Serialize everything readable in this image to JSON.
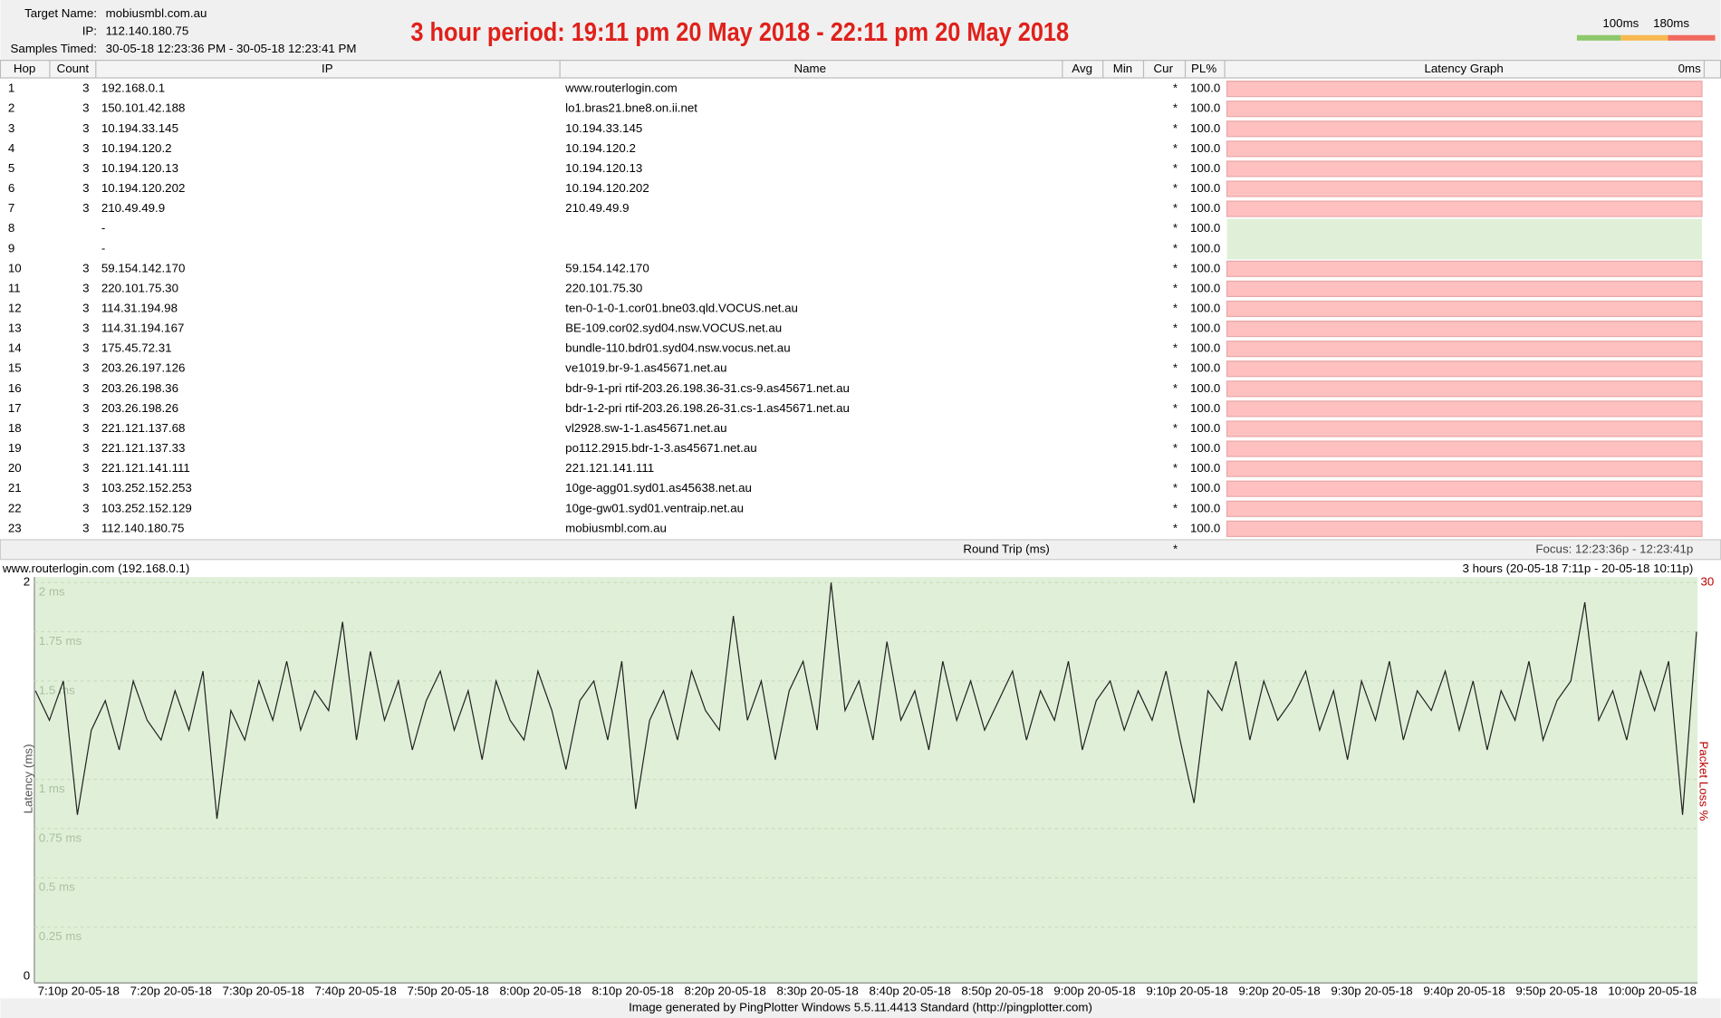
{
  "header": {
    "target_name_label": "Target Name:",
    "target_name": "mobiusmbl.com.au",
    "ip_label": "IP:",
    "ip": "112.140.180.75",
    "samples_label": "Samples Timed:",
    "samples": "30-05-18 12:23:36 PM - 30-05-18 12:23:41 PM",
    "banner": "3 hour period:  19:11 pm 20 May 2018 - 22:11 pm 20 May 2018",
    "legend": [
      "100ms",
      "180ms"
    ]
  },
  "table": {
    "columns": [
      "Hop",
      "Count",
      "IP",
      "Name",
      "Avg",
      "Min",
      "Cur",
      "PL%",
      "Latency Graph"
    ],
    "graph_scale": "0ms",
    "rows": [
      {
        "hop": 1,
        "count": 3,
        "ip": "192.168.0.1",
        "name": "www.routerlogin.com",
        "cur": "*",
        "pl": "100.0"
      },
      {
        "hop": 2,
        "count": 3,
        "ip": "150.101.42.188",
        "name": "lo1.bras21.bne8.on.ii.net",
        "cur": "*",
        "pl": "100.0"
      },
      {
        "hop": 3,
        "count": 3,
        "ip": "10.194.33.145",
        "name": "10.194.33.145",
        "cur": "*",
        "pl": "100.0"
      },
      {
        "hop": 4,
        "count": 3,
        "ip": "10.194.120.2",
        "name": "10.194.120.2",
        "cur": "*",
        "pl": "100.0"
      },
      {
        "hop": 5,
        "count": 3,
        "ip": "10.194.120.13",
        "name": "10.194.120.13",
        "cur": "*",
        "pl": "100.0"
      },
      {
        "hop": 6,
        "count": 3,
        "ip": "10.194.120.202",
        "name": "10.194.120.202",
        "cur": "*",
        "pl": "100.0"
      },
      {
        "hop": 7,
        "count": 3,
        "ip": "210.49.49.9",
        "name": "210.49.49.9",
        "cur": "*",
        "pl": "100.0"
      },
      {
        "hop": 8,
        "count": null,
        "ip": "-",
        "name": null,
        "cur": "*",
        "pl": "100.0"
      },
      {
        "hop": 9,
        "count": null,
        "ip": "-",
        "name": null,
        "cur": "*",
        "pl": "100.0"
      },
      {
        "hop": 10,
        "count": 3,
        "ip": "59.154.142.170",
        "name": "59.154.142.170",
        "cur": "*",
        "pl": "100.0"
      },
      {
        "hop": 11,
        "count": 3,
        "ip": "220.101.75.30",
        "name": "220.101.75.30",
        "cur": "*",
        "pl": "100.0"
      },
      {
        "hop": 12,
        "count": 3,
        "ip": "114.31.194.98",
        "name": "ten-0-1-0-1.cor01.bne03.qld.VOCUS.net.au",
        "cur": "*",
        "pl": "100.0"
      },
      {
        "hop": 13,
        "count": 3,
        "ip": "114.31.194.167",
        "name": "BE-109.cor02.syd04.nsw.VOCUS.net.au",
        "cur": "*",
        "pl": "100.0"
      },
      {
        "hop": 14,
        "count": 3,
        "ip": "175.45.72.31",
        "name": "bundle-110.bdr01.syd04.nsw.vocus.net.au",
        "cur": "*",
        "pl": "100.0"
      },
      {
        "hop": 15,
        "count": 3,
        "ip": "203.26.197.126",
        "name": "ve1019.br-9-1.as45671.net.au",
        "cur": "*",
        "pl": "100.0"
      },
      {
        "hop": 16,
        "count": 3,
        "ip": "203.26.198.36",
        "name": "bdr-9-1-pri rtif-203.26.198.36-31.cs-9.as45671.net.au",
        "cur": "*",
        "pl": "100.0"
      },
      {
        "hop": 17,
        "count": 3,
        "ip": "203.26.198.26",
        "name": "bdr-1-2-pri rtif-203.26.198.26-31.cs-1.as45671.net.au",
        "cur": "*",
        "pl": "100.0"
      },
      {
        "hop": 18,
        "count": 3,
        "ip": "221.121.137.68",
        "name": "vl2928.sw-1-1.as45671.net.au",
        "cur": "*",
        "pl": "100.0"
      },
      {
        "hop": 19,
        "count": 3,
        "ip": "221.121.137.33",
        "name": "po112.2915.bdr-1-3.as45671.net.au",
        "cur": "*",
        "pl": "100.0"
      },
      {
        "hop": 20,
        "count": 3,
        "ip": "221.121.141.111",
        "name": "221.121.141.111",
        "cur": "*",
        "pl": "100.0"
      },
      {
        "hop": 21,
        "count": 3,
        "ip": "103.252.152.253",
        "name": "10ge-agg01.syd01.as45638.net.au",
        "cur": "*",
        "pl": "100.0"
      },
      {
        "hop": 22,
        "count": 3,
        "ip": "103.252.152.129",
        "name": "10ge-gw01.syd01.ventraip.net.au",
        "cur": "*",
        "pl": "100.0"
      },
      {
        "hop": 23,
        "count": 3,
        "ip": "112.140.180.75",
        "name": "mobiusmbl.com.au",
        "cur": "*",
        "pl": "100.0"
      }
    ],
    "footer": {
      "label": "Round Trip (ms)",
      "cur": "*",
      "focus": "Focus: 12:23:36p - 12:23:41p"
    }
  },
  "graph": {
    "title": "www.routerlogin.com (192.168.0.1)",
    "range": "3 hours (20-05-18 7:11p - 20-05-18 10:11p)",
    "ylabel": "Latency (ms)",
    "y2label": "Packet Loss %",
    "y2top": "30",
    "ylim": [
      0,
      2
    ],
    "yticks": [
      {
        "value": 2,
        "label": "2 ms"
      },
      {
        "value": 1.75,
        "label": "1.75 ms"
      },
      {
        "value": 1.5,
        "label": "1.5 ms"
      },
      {
        "value": 1,
        "label": "1 ms"
      },
      {
        "value": 0.75,
        "label": "0.75 ms"
      },
      {
        "value": 0.5,
        "label": "0.5 ms"
      },
      {
        "value": 0.25,
        "label": "0.25 ms"
      }
    ],
    "xlabels": [
      "7:10p 20-05-18",
      "7:20p 20-05-18",
      "7:30p 20-05-18",
      "7:40p 20-05-18",
      "7:50p 20-05-18",
      "8:00p 20-05-18",
      "8:10p 20-05-18",
      "8:20p 20-05-18",
      "8:30p 20-05-18",
      "8:40p 20-05-18",
      "8:50p 20-05-18",
      "9:00p 20-05-18",
      "9:10p 20-05-18",
      "9:20p 20-05-18",
      "9:30p 20-05-18",
      "9:40p 20-05-18",
      "9:50p 20-05-18",
      "10:00p 20-05-18"
    ],
    "color": "#222222",
    "values": [
      1.45,
      1.3,
      1.5,
      0.82,
      1.25,
      1.4,
      1.15,
      1.5,
      1.3,
      1.2,
      1.45,
      1.25,
      1.55,
      0.8,
      1.35,
      1.2,
      1.5,
      1.3,
      1.6,
      1.25,
      1.45,
      1.35,
      1.8,
      1.2,
      1.65,
      1.3,
      1.5,
      1.15,
      1.4,
      1.55,
      1.25,
      1.45,
      1.1,
      1.5,
      1.3,
      1.2,
      1.55,
      1.35,
      1.05,
      1.4,
      1.5,
      1.2,
      1.6,
      0.85,
      1.3,
      1.45,
      1.2,
      1.55,
      1.35,
      1.25,
      1.83,
      1.3,
      1.5,
      1.1,
      1.45,
      1.6,
      1.25,
      2.0,
      1.35,
      1.5,
      1.2,
      1.7,
      1.3,
      1.45,
      1.15,
      1.6,
      1.3,
      1.5,
      1.25,
      1.4,
      1.55,
      1.2,
      1.45,
      1.3,
      1.6,
      1.15,
      1.4,
      1.5,
      1.25,
      1.45,
      1.3,
      1.55,
      1.2,
      0.88,
      1.45,
      1.35,
      1.6,
      1.2,
      1.5,
      1.3,
      1.4,
      1.55,
      1.25,
      1.45,
      1.1,
      1.5,
      1.3,
      1.6,
      1.2,
      1.45,
      1.35,
      1.55,
      1.25,
      1.5,
      1.15,
      1.45,
      1.3,
      1.6,
      1.2,
      1.4,
      1.5,
      1.9,
      1.3,
      1.45,
      1.2,
      1.55,
      1.35,
      1.6,
      0.82,
      1.75
    ]
  },
  "footer": "Image generated by PingPlotter Windows 5.5.11.4413 Standard (http://pingplotter.com)"
}
